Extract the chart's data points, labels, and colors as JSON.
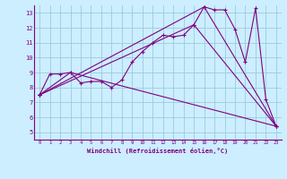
{
  "xlabel": "Windchill (Refroidissement éolien,°C)",
  "xlim": [
    -0.5,
    23.5
  ],
  "ylim": [
    4.5,
    13.5
  ],
  "xticks": [
    0,
    1,
    2,
    3,
    4,
    5,
    6,
    7,
    8,
    9,
    10,
    11,
    12,
    13,
    14,
    15,
    16,
    17,
    18,
    19,
    20,
    21,
    22,
    23
  ],
  "yticks": [
    5,
    6,
    7,
    8,
    9,
    10,
    11,
    12,
    13
  ],
  "background_color": "#cceeff",
  "grid_color": "#99ccdd",
  "line_color": "#800080",
  "main_line": {
    "x": [
      0,
      1,
      2,
      3,
      4,
      5,
      6,
      7,
      8,
      9,
      10,
      11,
      12,
      13,
      14,
      15,
      16,
      17,
      18,
      19,
      20,
      21,
      22,
      23
    ],
    "y": [
      7.5,
      8.9,
      8.9,
      9.0,
      8.3,
      8.4,
      8.4,
      8.0,
      8.5,
      9.7,
      10.4,
      11.0,
      11.5,
      11.4,
      11.5,
      12.2,
      13.4,
      13.2,
      13.2,
      11.9,
      9.7,
      13.3,
      7.2,
      5.4
    ]
  },
  "triangle_lines": [
    {
      "x": [
        0,
        3,
        23
      ],
      "y": [
        7.5,
        9.0,
        5.4
      ]
    },
    {
      "x": [
        0,
        15,
        23
      ],
      "y": [
        7.5,
        12.2,
        5.4
      ]
    },
    {
      "x": [
        0,
        16,
        23
      ],
      "y": [
        7.5,
        13.4,
        5.4
      ]
    }
  ]
}
